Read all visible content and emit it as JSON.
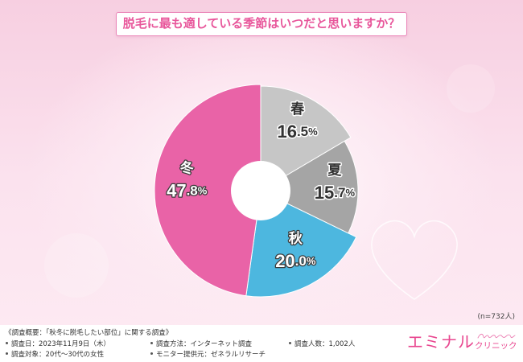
{
  "title": "脱毛に最も適している季節はいつだと思いますか？",
  "chart_data": {
    "type": "pie",
    "donut": true,
    "categories": [
      "春",
      "夏",
      "秋",
      "冬"
    ],
    "values": [
      16.5,
      15.7,
      20.0,
      47.8
    ],
    "unit": "%",
    "colors": [
      "#c6c6c6",
      "#a5a5a5",
      "#4db7df",
      "#e963a7"
    ],
    "sample_size": "(n=732人)"
  },
  "survey": {
    "heading": "《調査概要：「秋冬に脱毛したい部位」に関する調査》",
    "items": [
      "調査日：2023年11月9日（木）",
      "調査方法：インターネット調査",
      "調査人数：1,002人",
      "調査対象：20代～30代の女性",
      "モニター提供元：ゼネラルリサーチ"
    ]
  },
  "logo": {
    "name": "エミナル",
    "suffix": "クリニック"
  },
  "theme": {
    "accent": "#e8579b",
    "title_border": "#ea86b8"
  }
}
